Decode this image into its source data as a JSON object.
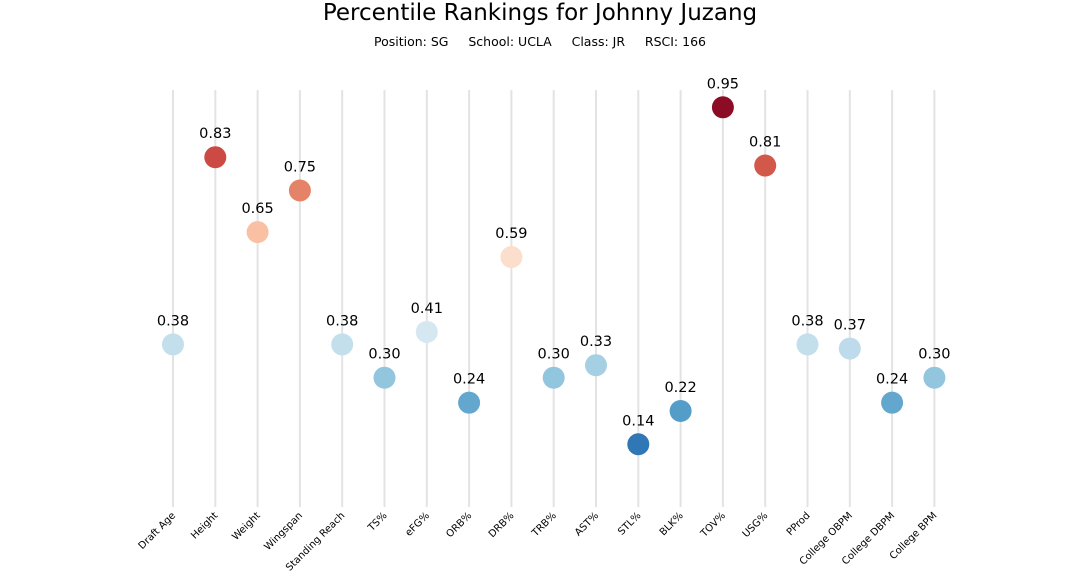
{
  "chart_data": {
    "type": "scatter",
    "title": "Percentile Rankings for Johnny Juzang",
    "subtitle": "Position: SG     School: UCLA     Class: JR     RSCI: 166",
    "ylim": [
      0,
      1
    ],
    "grid": "vertical",
    "categories": [
      "Draft Age",
      "Height",
      "Weight",
      "Wingspan",
      "Standing Reach",
      "TS%",
      "eFG%",
      "ORB%",
      "DRB%",
      "TRB%",
      "AST%",
      "STL%",
      "BLK%",
      "TOV%",
      "USG%",
      "PProd",
      "College OBPM",
      "College DBPM",
      "College BPM"
    ],
    "values": [
      0.38,
      0.83,
      0.65,
      0.75,
      0.38,
      0.3,
      0.41,
      0.24,
      0.59,
      0.3,
      0.33,
      0.14,
      0.22,
      0.95,
      0.81,
      0.38,
      0.37,
      0.24,
      0.3
    ],
    "labels": [
      "0.38",
      "0.83",
      "0.65",
      "0.75",
      "0.38",
      "0.30",
      "0.41",
      "0.24",
      "0.59",
      "0.30",
      "0.33",
      "0.14",
      "0.22",
      "0.95",
      "0.81",
      "0.38",
      "0.37",
      "0.24",
      "0.30"
    ],
    "colormap": "RdBu_r"
  }
}
